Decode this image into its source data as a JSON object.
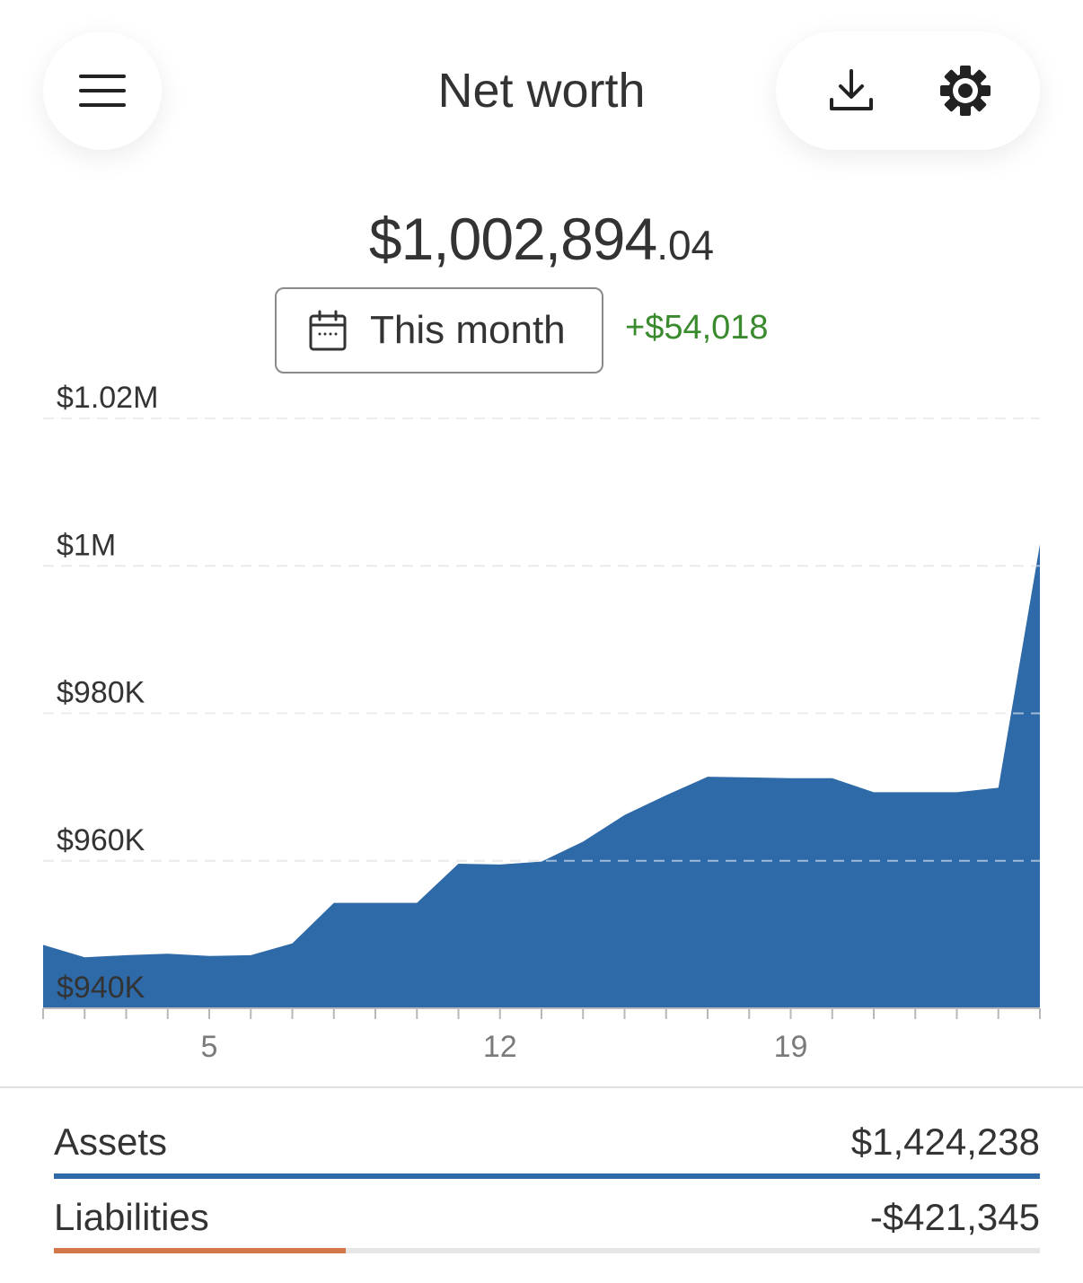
{
  "header": {
    "title": "Net worth"
  },
  "summary": {
    "amount_main": "$1,002,894",
    "amount_cents": ".04",
    "period_label": "This month",
    "change": "+$54,018"
  },
  "chart_data": {
    "type": "area",
    "x": [
      1,
      2,
      3,
      4,
      5,
      6,
      7,
      8,
      9,
      10,
      11,
      12,
      13,
      14,
      15,
      16,
      17,
      18,
      19,
      20,
      21,
      22,
      23,
      24,
      25
    ],
    "values": [
      948600,
      946900,
      947200,
      947400,
      947100,
      947200,
      948800,
      954300,
      954300,
      954300,
      959600,
      959500,
      959900,
      962600,
      966200,
      968900,
      971400,
      971300,
      971200,
      971200,
      969300,
      969300,
      969300,
      969900,
      1002900
    ],
    "ylim": [
      940000,
      1020000
    ],
    "y_ticks": [
      940000,
      960000,
      980000,
      1000000,
      1020000
    ],
    "y_tick_labels": [
      "$940K",
      "$960K",
      "$980K",
      "$1M",
      "$1.02M"
    ],
    "x_tick_values": [
      5,
      12,
      19
    ],
    "x_tick_labels": [
      "5",
      "12",
      "19"
    ],
    "grid": true,
    "color": "#2e69a8"
  },
  "breakdown": {
    "assets_label": "Assets",
    "assets_value": "$1,424,238",
    "assets_fraction": 1.0,
    "assets_color": "#2e69a8",
    "liabilities_label": "Liabilities",
    "liabilities_value": "-$421,345",
    "liabilities_fraction": 0.296,
    "liabilities_color": "#d4774a"
  }
}
